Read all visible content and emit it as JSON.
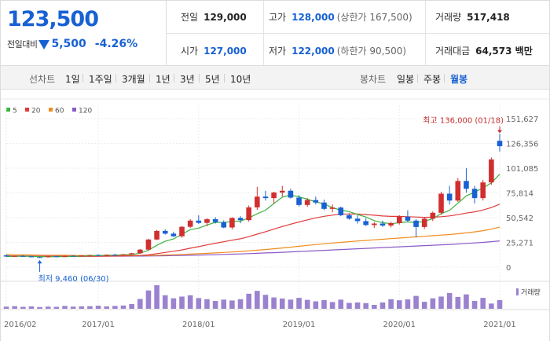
{
  "quote": {
    "price": "123,500",
    "change_label": "전일대비",
    "change_value": "5,500",
    "change_rate": "-4.26%",
    "direction_icon": "down-triangle-icon",
    "color_down": "#1861d3",
    "color_up": "#d12f2f"
  },
  "stats": {
    "prev_close_label": "전일",
    "prev_close": "129,000",
    "high_label": "고가",
    "high": "128,000",
    "upper_limit_label": "(상한가 167,500)",
    "volume_label": "거래량",
    "volume": "517,418",
    "open_label": "시가",
    "open": "127,000",
    "low_label": "저가",
    "low": "122,000",
    "lower_limit_label": "(하한가 90,500)",
    "amount_label": "거래대금",
    "amount": "64,573 백만"
  },
  "toolbar": {
    "line_chart_label": "선차트",
    "periods": [
      "1일",
      "1주일",
      "3개월",
      "1년",
      "3년",
      "5년",
      "10년"
    ],
    "candle_chart_label": "봉차트",
    "candle_types": [
      "일봉",
      "주봉",
      "월봉"
    ],
    "active_candle_type": "월봉"
  },
  "chart_data": {
    "type": "candlestick",
    "interval": "monthly",
    "legend": [
      {
        "name": "5",
        "color": "#3bb33b"
      },
      {
        "name": "20",
        "color": "#e03a3a"
      },
      {
        "name": "60",
        "color": "#f08c1e"
      },
      {
        "name": "120",
        "color": "#8a5ac6"
      }
    ],
    "y_ticks": [
      0,
      25271,
      50542,
      75814,
      101085,
      126356,
      151627
    ],
    "y_tick_labels": [
      "0",
      "25,271",
      "50,542",
      "75,814",
      "101,085",
      "126,356",
      "151,627"
    ],
    "ylim": [
      0,
      151627
    ],
    "x_ticks": [
      {
        "label": "2016/02",
        "index": 0
      },
      {
        "label": "2017/01",
        "index": 11
      },
      {
        "label": "2018/01",
        "index": 23
      },
      {
        "label": "2019/01",
        "index": 35
      },
      {
        "label": "2020/01",
        "index": 47
      },
      {
        "label": "2021/01",
        "index": 59
      }
    ],
    "high_annotation": {
      "text": "최고 136,000 (01/18)",
      "value": 136000,
      "index": 59
    },
    "low_annotation": {
      "text": "최저 9,460 (06/30)",
      "value": 9460,
      "index": 4
    },
    "candles": [
      {
        "o": 12000,
        "h": 12900,
        "l": 10700,
        "c": 10800
      },
      {
        "o": 10800,
        "h": 11800,
        "l": 10400,
        "c": 11400
      },
      {
        "o": 11400,
        "h": 12200,
        "l": 10600,
        "c": 10900
      },
      {
        "o": 10900,
        "h": 11600,
        "l": 10000,
        "c": 10200
      },
      {
        "o": 10200,
        "h": 10800,
        "l": 9460,
        "c": 10100
      },
      {
        "o": 10100,
        "h": 11300,
        "l": 9900,
        "c": 11000
      },
      {
        "o": 11000,
        "h": 11500,
        "l": 10300,
        "c": 10500
      },
      {
        "o": 10500,
        "h": 11800,
        "l": 10200,
        "c": 11600
      },
      {
        "o": 11600,
        "h": 12300,
        "l": 11100,
        "c": 11300
      },
      {
        "o": 11300,
        "h": 12100,
        "l": 10800,
        "c": 11900
      },
      {
        "o": 11900,
        "h": 12600,
        "l": 11400,
        "c": 12400
      },
      {
        "o": 12400,
        "h": 13200,
        "l": 11800,
        "c": 12000
      },
      {
        "o": 12000,
        "h": 12900,
        "l": 11500,
        "c": 12700
      },
      {
        "o": 12700,
        "h": 13600,
        "l": 12100,
        "c": 12300
      },
      {
        "o": 12300,
        "h": 13400,
        "l": 11900,
        "c": 13100
      },
      {
        "o": 13100,
        "h": 14600,
        "l": 12800,
        "c": 14200
      },
      {
        "o": 14200,
        "h": 18500,
        "l": 13700,
        "c": 17900
      },
      {
        "o": 17900,
        "h": 29000,
        "l": 17200,
        "c": 28200
      },
      {
        "o": 28200,
        "h": 38000,
        "l": 27500,
        "c": 37000
      },
      {
        "o": 37000,
        "h": 38500,
        "l": 33200,
        "c": 34200
      },
      {
        "o": 34200,
        "h": 36200,
        "l": 30800,
        "c": 31500
      },
      {
        "o": 31500,
        "h": 42000,
        "l": 30000,
        "c": 41200
      },
      {
        "o": 41200,
        "h": 49000,
        "l": 40000,
        "c": 47500
      },
      {
        "o": 47500,
        "h": 53000,
        "l": 44000,
        "c": 45200
      },
      {
        "o": 45200,
        "h": 50000,
        "l": 41800,
        "c": 49000
      },
      {
        "o": 49000,
        "h": 51000,
        "l": 44500,
        "c": 46000
      },
      {
        "o": 46000,
        "h": 47800,
        "l": 39800,
        "c": 40500
      },
      {
        "o": 40500,
        "h": 51000,
        "l": 38500,
        "c": 50200
      },
      {
        "o": 50200,
        "h": 52000,
        "l": 44800,
        "c": 48000
      },
      {
        "o": 48000,
        "h": 63000,
        "l": 46500,
        "c": 61000
      },
      {
        "o": 61000,
        "h": 82000,
        "l": 58500,
        "c": 72000
      },
      {
        "o": 72000,
        "h": 78000,
        "l": 68000,
        "c": 70500
      },
      {
        "o": 70500,
        "h": 77000,
        "l": 65000,
        "c": 76200
      },
      {
        "o": 76200,
        "h": 83000,
        "l": 72000,
        "c": 78000
      },
      {
        "o": 78000,
        "h": 80000,
        "l": 70000,
        "c": 71000
      },
      {
        "o": 71000,
        "h": 73500,
        "l": 62000,
        "c": 63500
      },
      {
        "o": 63500,
        "h": 70500,
        "l": 61500,
        "c": 68500
      },
      {
        "o": 68500,
        "h": 72000,
        "l": 64000,
        "c": 66000
      },
      {
        "o": 66000,
        "h": 69000,
        "l": 58000,
        "c": 59500
      },
      {
        "o": 59500,
        "h": 64000,
        "l": 56000,
        "c": 60800
      },
      {
        "o": 60800,
        "h": 61800,
        "l": 52000,
        "c": 53000
      },
      {
        "o": 53000,
        "h": 55000,
        "l": 48500,
        "c": 49500
      },
      {
        "o": 49500,
        "h": 53000,
        "l": 44500,
        "c": 47000
      },
      {
        "o": 47000,
        "h": 50000,
        "l": 42000,
        "c": 43000
      },
      {
        "o": 43000,
        "h": 46000,
        "l": 40000,
        "c": 44500
      },
      {
        "o": 44500,
        "h": 47500,
        "l": 41000,
        "c": 42500
      },
      {
        "o": 42500,
        "h": 46500,
        "l": 40500,
        "c": 45000
      },
      {
        "o": 45000,
        "h": 53000,
        "l": 43500,
        "c": 51500
      },
      {
        "o": 51500,
        "h": 58000,
        "l": 46000,
        "c": 47500
      },
      {
        "o": 47500,
        "h": 49000,
        "l": 30500,
        "c": 41000
      },
      {
        "o": 41000,
        "h": 51000,
        "l": 39000,
        "c": 49500
      },
      {
        "o": 49500,
        "h": 57000,
        "l": 47000,
        "c": 55500
      },
      {
        "o": 55500,
        "h": 77000,
        "l": 53500,
        "c": 75000
      },
      {
        "o": 75000,
        "h": 83000,
        "l": 64000,
        "c": 68000
      },
      {
        "o": 68000,
        "h": 91000,
        "l": 66500,
        "c": 88000
      },
      {
        "o": 88000,
        "h": 101000,
        "l": 76000,
        "c": 80000
      },
      {
        "o": 80000,
        "h": 83000,
        "l": 65000,
        "c": 70500
      },
      {
        "o": 70500,
        "h": 89000,
        "l": 68000,
        "c": 86500
      },
      {
        "o": 86500,
        "h": 112000,
        "l": 84000,
        "c": 110000
      },
      {
        "o": 129000,
        "h": 136000,
        "l": 118000,
        "c": 123500
      }
    ],
    "volume_label": "거래량",
    "volume": [
      1,
      1.2,
      0.9,
      1.1,
      0.8,
      1,
      0.9,
      1.3,
      1,
      1.1,
      1.2,
      1.4,
      1.1,
      1.3,
      1.5,
      2.2,
      4.5,
      8.4,
      10.8,
      6.2,
      4.8,
      5.6,
      6.2,
      4.9,
      4.4,
      3.6,
      4.2,
      3.8,
      4.4,
      6.9,
      8.2,
      6.4,
      5.2,
      4.7,
      4.2,
      5.0,
      4.1,
      3.4,
      4.0,
      3.1,
      4.2,
      2.7,
      2.9,
      2.6,
      1.8,
      2.9,
      4.4,
      3.9,
      4.3,
      5.9,
      3.2,
      4.8,
      5.6,
      7.2,
      5.4,
      6.6,
      3.6,
      5.0,
      2.4,
      4.0
    ],
    "ma5": [
      10800,
      11000,
      11200,
      11000,
      10700,
      10700,
      10700,
      10700,
      10900,
      11300,
      11600,
      11800,
      12100,
      12300,
      12600,
      13000,
      14200,
      17300,
      22300,
      26400,
      28800,
      33600,
      38300,
      39900,
      43000,
      45800,
      45600,
      46700,
      47000,
      50300,
      54500,
      58200,
      65000,
      71500,
      73600,
      71800,
      69400,
      66600,
      64700,
      60700,
      58200,
      56700,
      53700,
      51200,
      47500,
      45400,
      44400,
      45300,
      46200,
      45400,
      46800,
      49500,
      54600,
      58000,
      65300,
      72800,
      76700,
      80800,
      86000,
      95000
    ],
    "ma20": [
      11500,
      11400,
      11300,
      11200,
      11100,
      11000,
      10900,
      10900,
      10900,
      11000,
      11000,
      11100,
      11200,
      11300,
      11400,
      11600,
      11900,
      12600,
      13800,
      15000,
      16200,
      17600,
      19300,
      20900,
      22700,
      24400,
      25900,
      27500,
      29000,
      31100,
      33700,
      36200,
      38800,
      41500,
      43900,
      46100,
      48300,
      50300,
      51900,
      53100,
      54000,
      54300,
      54200,
      53700,
      53000,
      52200,
      51800,
      51800,
      51500,
      51200,
      50900,
      51000,
      51500,
      52300,
      53600,
      55200,
      56500,
      58300,
      60900,
      64300
    ],
    "ma60": [
      12800,
      12600,
      12500,
      12400,
      12300,
      12200,
      12100,
      12000,
      12000,
      11900,
      11900,
      11900,
      11900,
      11900,
      11900,
      11900,
      11900,
      12000,
      12200,
      12400,
      12700,
      13000,
      13300,
      13700,
      14100,
      14500,
      15000,
      15500,
      16000,
      16600,
      17300,
      18000,
      18800,
      19600,
      20400,
      21300,
      22200,
      23000,
      23800,
      24600,
      25300,
      26000,
      26700,
      27300,
      27900,
      28500,
      29100,
      29700,
      30300,
      30900,
      31500,
      32100,
      32700,
      33300,
      34100,
      35000,
      36000,
      37200,
      38800,
      40800
    ],
    "ma120": [
      11200,
      11200,
      11200,
      11200,
      11200,
      11200,
      11200,
      11200,
      11200,
      11200,
      11200,
      11200,
      11200,
      11200,
      11200,
      11300,
      11300,
      11400,
      11500,
      11600,
      11800,
      11900,
      12100,
      12300,
      12500,
      12700,
      13000,
      13200,
      13500,
      13800,
      14100,
      14500,
      14800,
      15200,
      15600,
      16000,
      16400,
      16800,
      17200,
      17600,
      18000,
      18400,
      18800,
      19200,
      19600,
      20000,
      20400,
      20800,
      21200,
      21600,
      22000,
      22400,
      22800,
      23200,
      23700,
      24200,
      24700,
      25300,
      26000,
      26800
    ]
  }
}
